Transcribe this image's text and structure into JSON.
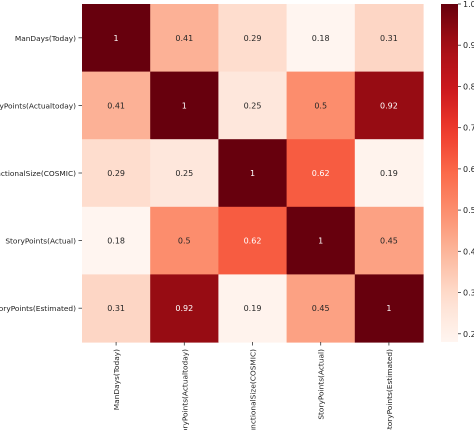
{
  "chart_data": {
    "type": "heatmap",
    "title": "",
    "xlabel": "",
    "ylabel": "",
    "rows": [
      "ManDays(Today)",
      "StoryPoints(Actualtoday)",
      "FunctionalSize(COSMIC)",
      "StoryPoints(Actual)",
      "StoryPoints(Estimated)"
    ],
    "columns": [
      "ManDays(Today)",
      "StoryPoints(Actualtoday)",
      "FunctionalSize(COSMIC)",
      "StoryPoints(Actual)",
      "StoryPoints(Estimated)"
    ],
    "values": [
      [
        1,
        0.41,
        0.29,
        0.18,
        0.31
      ],
      [
        0.41,
        1,
        0.25,
        0.5,
        0.92
      ],
      [
        0.29,
        0.25,
        1,
        0.62,
        0.19
      ],
      [
        0.18,
        0.5,
        0.62,
        1,
        0.45
      ],
      [
        0.31,
        0.92,
        0.19,
        0.45,
        1
      ]
    ],
    "cell_labels": [
      [
        "1",
        "0.41",
        "0.29",
        "0.18",
        "0.31"
      ],
      [
        "0.41",
        "1",
        "0.25",
        "0.5",
        "0.92"
      ],
      [
        "0.29",
        "0.25",
        "1",
        "0.62",
        "0.19"
      ],
      [
        "0.18",
        "0.5",
        "0.62",
        "1",
        "0.45"
      ],
      [
        "0.31",
        "0.92",
        "0.19",
        "0.45",
        "1"
      ]
    ],
    "colormap": "Reds",
    "color_range": [
      0.18,
      1.0
    ],
    "colorbar_ticks": [
      {
        "value": 1.0,
        "label": "1.0"
      },
      {
        "value": 0.9,
        "label": "0.9"
      },
      {
        "value": 0.8,
        "label": "0.8"
      },
      {
        "value": 0.7,
        "label": "0.7"
      },
      {
        "value": 0.6,
        "label": "0.6"
      },
      {
        "value": 0.5,
        "label": "0.5"
      },
      {
        "value": 0.4,
        "label": "0.4"
      },
      {
        "value": 0.3,
        "label": "0.3"
      },
      {
        "value": 0.2,
        "label": "0.2"
      }
    ],
    "grid": false,
    "legend": "colorbar-right"
  }
}
